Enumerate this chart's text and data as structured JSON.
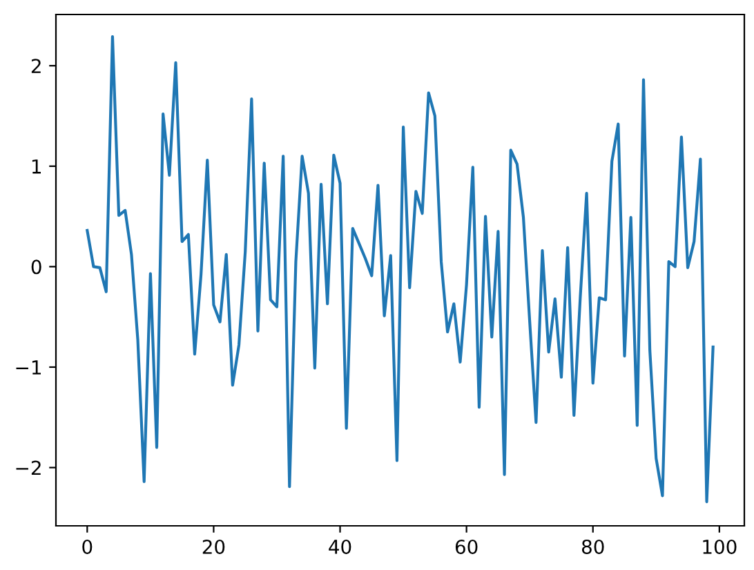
{
  "chart_data": {
    "type": "line",
    "x": [
      0,
      1,
      2,
      3,
      4,
      5,
      6,
      7,
      8,
      9,
      10,
      11,
      12,
      13,
      14,
      15,
      16,
      17,
      18,
      19,
      20,
      21,
      22,
      23,
      24,
      25,
      26,
      27,
      28,
      29,
      30,
      31,
      32,
      33,
      34,
      35,
      36,
      37,
      38,
      39,
      40,
      41,
      42,
      43,
      44,
      45,
      46,
      47,
      48,
      49,
      50,
      51,
      52,
      53,
      54,
      55,
      56,
      57,
      58,
      59,
      60,
      61,
      62,
      63,
      64,
      65,
      66,
      67,
      68,
      69,
      70,
      71,
      72,
      73,
      74,
      75,
      76,
      77,
      78,
      79,
      80,
      81,
      82,
      83,
      84,
      85,
      86,
      87,
      88,
      89,
      90,
      91,
      92,
      93,
      94,
      95,
      96,
      97,
      98,
      99
    ],
    "values": [
      0.36,
      0.0,
      -0.01,
      -0.25,
      2.29,
      0.51,
      0.56,
      0.12,
      -0.73,
      -2.14,
      -0.07,
      -1.8,
      1.52,
      0.91,
      2.03,
      0.25,
      0.32,
      -0.87,
      -0.08,
      1.06,
      -0.38,
      -0.55,
      0.12,
      -1.18,
      -0.78,
      0.15,
      1.67,
      -0.64,
      1.03,
      -0.33,
      -0.4,
      1.1,
      -2.19,
      0.05,
      1.1,
      0.73,
      -1.01,
      0.82,
      -0.37,
      1.11,
      0.83,
      -1.61,
      0.38,
      0.23,
      0.08,
      -0.09,
      0.81,
      -0.49,
      0.11,
      -1.93,
      1.39,
      -0.21,
      0.75,
      0.53,
      1.73,
      1.5,
      0.05,
      -0.65,
      -0.37,
      -0.95,
      -0.18,
      0.99,
      -1.4,
      0.5,
      -0.7,
      0.35,
      -2.07,
      1.16,
      1.02,
      0.49,
      -0.55,
      -1.55,
      0.16,
      -0.85,
      -0.32,
      -1.1,
      0.19,
      -1.48,
      -0.3,
      0.73,
      -1.16,
      -0.31,
      -0.33,
      1.05,
      1.42,
      -0.89,
      0.49,
      -1.58,
      1.86,
      -0.83,
      -1.91,
      -2.28,
      0.05,
      0.0,
      1.29,
      -0.01,
      0.25,
      1.07,
      -2.34,
      -0.8
    ],
    "color": "#1f77b4",
    "xlim": [
      -4.95,
      103.95
    ],
    "ylim": [
      -2.58,
      2.51
    ],
    "xticks": [
      0,
      20,
      40,
      60,
      80,
      100
    ],
    "yticks": [
      {
        "value": -2,
        "label": "−2"
      },
      {
        "value": -1,
        "label": "−1"
      },
      0,
      1,
      2
    ]
  }
}
